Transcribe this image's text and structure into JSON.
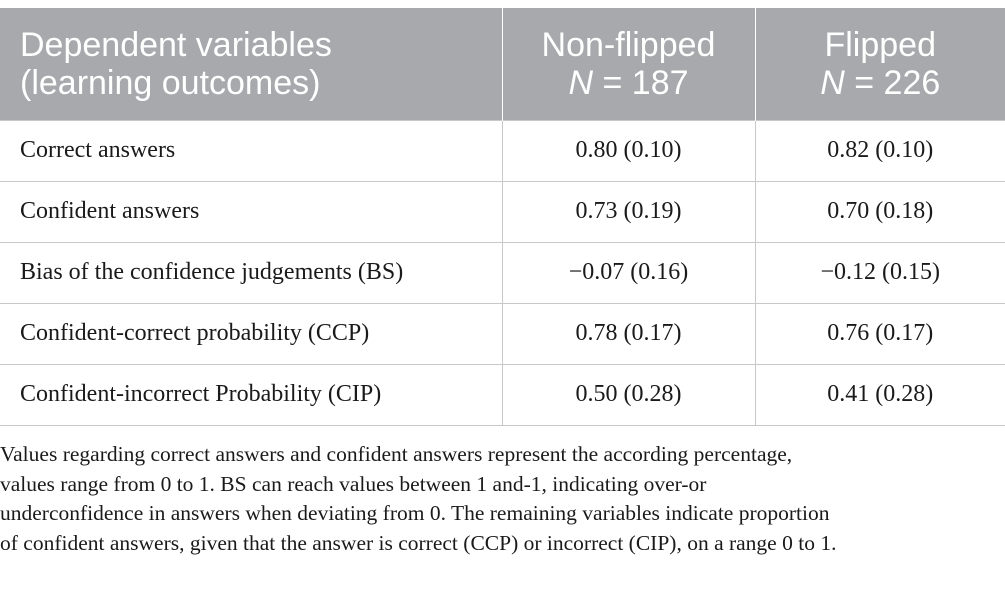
{
  "header": {
    "col1_line1": "Dependent variables",
    "col1_line2": "(learning outcomes)",
    "col2_line1": "Non-flipped",
    "col2_n": "N",
    "col2_count": " = 187",
    "col3_line1": "Flipped",
    "col3_n": "N",
    "col3_count": " = 226"
  },
  "rows": [
    {
      "label": "Correct answers",
      "nonflipped": "0.80 (0.10)",
      "flipped": "0.82 (0.10)"
    },
    {
      "label": "Confident answers",
      "nonflipped": "0.73 (0.19)",
      "flipped": "0.70 (0.18)"
    },
    {
      "label": "Bias of the confidence judgements (BS)",
      "nonflipped": "−0.07 (0.16)",
      "flipped": "−0.12 (0.15)"
    },
    {
      "label": "Confident-correct probability (CCP)",
      "nonflipped": "0.78 (0.17)",
      "flipped": "0.76 (0.17)"
    },
    {
      "label": "Confident-incorrect Probability (CIP)",
      "nonflipped": "0.50 (0.28)",
      "flipped": "0.41 (0.28)"
    }
  ],
  "footnote": [
    "Values regarding correct answers and confident answers represent the according percentage,",
    "values range from 0 to 1. BS can reach values between 1 and-1, indicating over-or",
    "underconfidence in answers when deviating from 0. The remaining variables indicate proportion",
    "of confident answers, given that the answer is correct (CCP) or incorrect (CIP), on a range 0 to 1."
  ],
  "colors": {
    "header_bg": "#a7a9ac",
    "header_text": "#ffffff",
    "grid": "#c8c8c8"
  }
}
